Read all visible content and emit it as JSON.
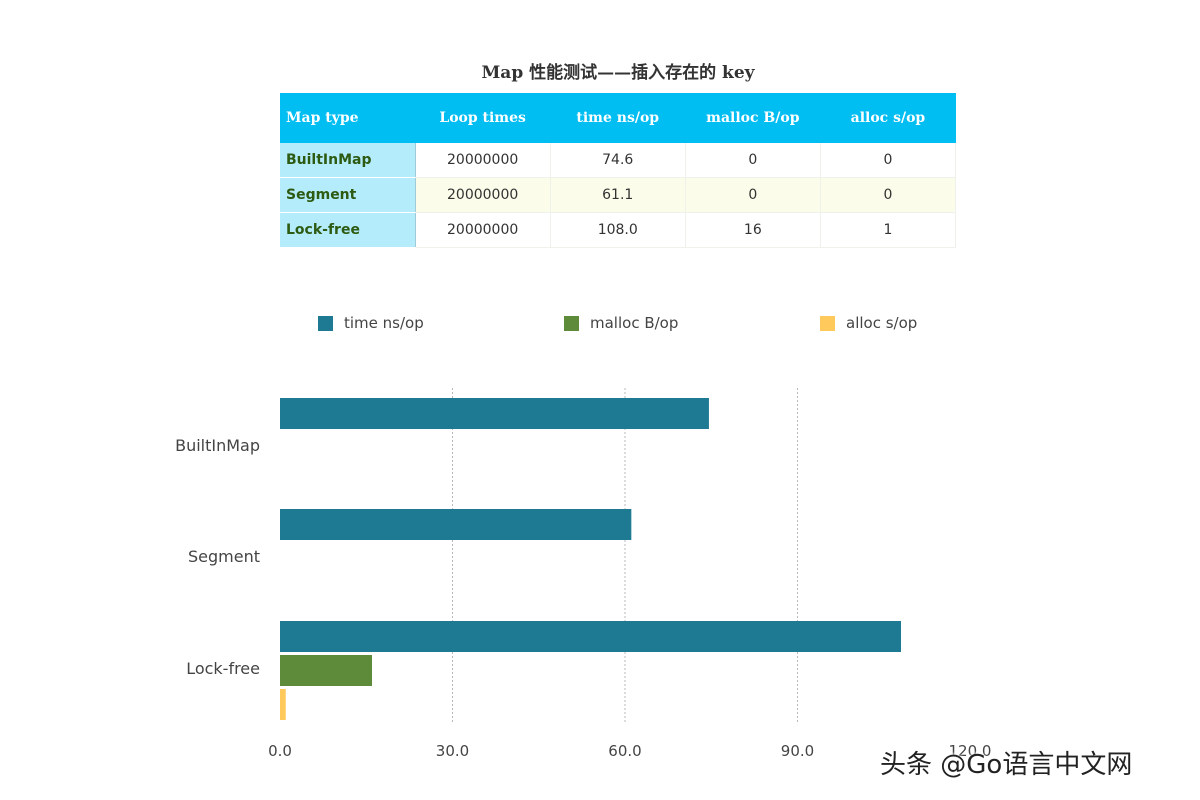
{
  "table": {
    "title": "Map 性能测试——插入存在的 key",
    "headers": [
      "Map type",
      "Loop times",
      "time ns/op",
      "malloc B/op",
      "alloc s/op"
    ],
    "rows": [
      [
        "BuiltInMap",
        "20000000",
        "74.6",
        "0",
        "0"
      ],
      [
        "Segment",
        "20000000",
        "61.1",
        "0",
        "0"
      ],
      [
        "Lock-free",
        "20000000",
        "108.0",
        "16",
        "1"
      ]
    ]
  },
  "chart_data": {
    "type": "bar",
    "orientation": "horizontal",
    "categories": [
      "BuiltInMap",
      "Segment",
      "Lock-free"
    ],
    "series": [
      {
        "name": "time ns/op",
        "color": "#1e7a93",
        "values": [
          74.6,
          61.1,
          108.0
        ]
      },
      {
        "name": "malloc B/op",
        "color": "#5e8b3a",
        "values": [
          0,
          0,
          16
        ]
      },
      {
        "name": "alloc s/op",
        "color": "#ffc95c",
        "values": [
          0,
          0,
          1
        ]
      }
    ],
    "xlim": [
      0,
      120
    ],
    "xticks": [
      "0.0",
      "30.0",
      "60.0",
      "90.0",
      "120.0"
    ],
    "grid": "vertical dotted",
    "legend": "top"
  },
  "watermark": "头条 @Go语言中文网"
}
